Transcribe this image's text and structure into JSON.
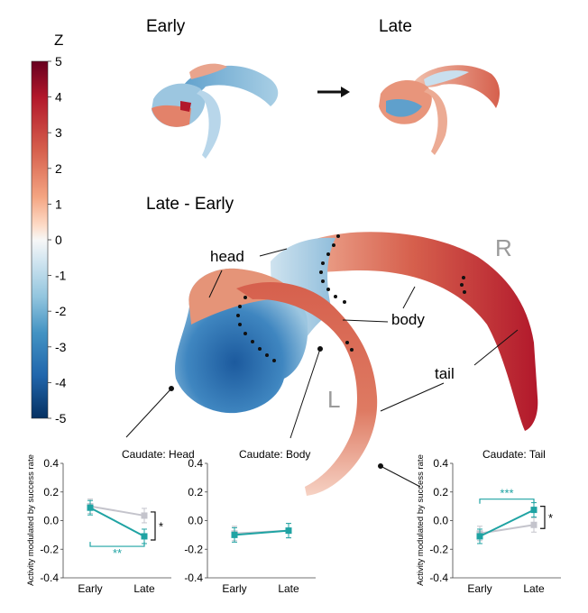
{
  "titles": {
    "early": "Early",
    "late": "Late",
    "diff": "Late - Early"
  },
  "colorbar": {
    "label": "Z",
    "ticks": [
      "5",
      "4",
      "3",
      "2",
      "1",
      "0",
      "-1",
      "-2",
      "-3",
      "-4",
      "-5"
    ],
    "colors": [
      "#67001f",
      "#b2182b",
      "#d6604d",
      "#f4a582",
      "#fddbc7",
      "#f7f7f7",
      "#d1e5f0",
      "#92c5de",
      "#4393c3",
      "#2166ac",
      "#053061"
    ]
  },
  "regions": {
    "head": "head",
    "body": "body",
    "tail": "tail"
  },
  "hemispheres": {
    "right": "R",
    "left": "L"
  },
  "plots": {
    "ylabel": "Activity modulated by success rate",
    "colors": {
      "teal": "#1fa3a3",
      "gray": "#c4c4cc"
    },
    "head": {
      "title": "Caudate: Head",
      "categories": [
        "Early",
        "Late"
      ],
      "yticks": [
        "0.4",
        "0.2",
        "0.0",
        "-0.2",
        "-0.4"
      ],
      "teal": [
        0.09,
        -0.11
      ],
      "gray": [
        0.1,
        0.035
      ],
      "sig_between": "*",
      "sig_teal": "**"
    },
    "body": {
      "title": "Caudate: Body",
      "categories": [
        "Early",
        "Late"
      ],
      "yticks": [
        "0.4",
        "0.2",
        "0.0",
        "-0.2",
        "-0.4"
      ],
      "teal": [
        -0.1,
        -0.07
      ],
      "gray": [
        -0.09,
        -0.07
      ]
    },
    "tail": {
      "title": "Caudate: Tail",
      "categories": [
        "Early",
        "Late"
      ],
      "yticks": [
        "0.4",
        "0.2",
        "0.0",
        "-0.2",
        "-0.4"
      ],
      "teal": [
        -0.11,
        0.075
      ],
      "gray": [
        -0.09,
        -0.03
      ],
      "sig_between": "*",
      "sig_teal": "***"
    }
  }
}
